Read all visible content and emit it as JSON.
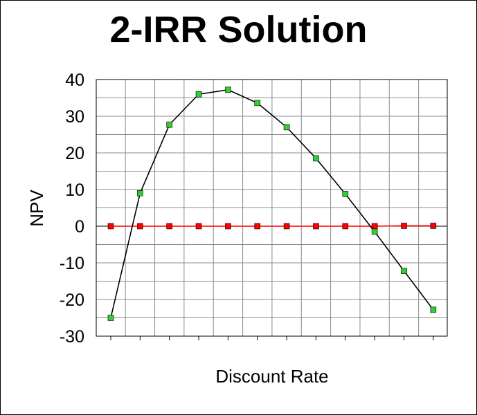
{
  "chart_data": {
    "type": "line",
    "title": "2-IRR Solution",
    "xlabel": "Discount Rate",
    "ylabel": "NPV",
    "ylim": [
      -30,
      40
    ],
    "yticks": [
      40,
      30,
      20,
      10,
      0,
      -10,
      -20,
      -30
    ],
    "grid": true,
    "legend": "none",
    "point_count": 12,
    "series": [
      {
        "values": [
          -25,
          9,
          27.7,
          36,
          37.2,
          33.6,
          27,
          18.5,
          8.8,
          -1.5,
          -12.2,
          -22.8
        ],
        "line_color": "#000000",
        "marker_color": "#33cc33"
      },
      {
        "values": [
          0,
          0,
          0,
          0,
          0,
          0,
          0,
          0,
          0,
          0,
          0.1,
          0.1
        ],
        "line_color": "#ff0000",
        "marker_color": "#ff0000"
      }
    ]
  }
}
